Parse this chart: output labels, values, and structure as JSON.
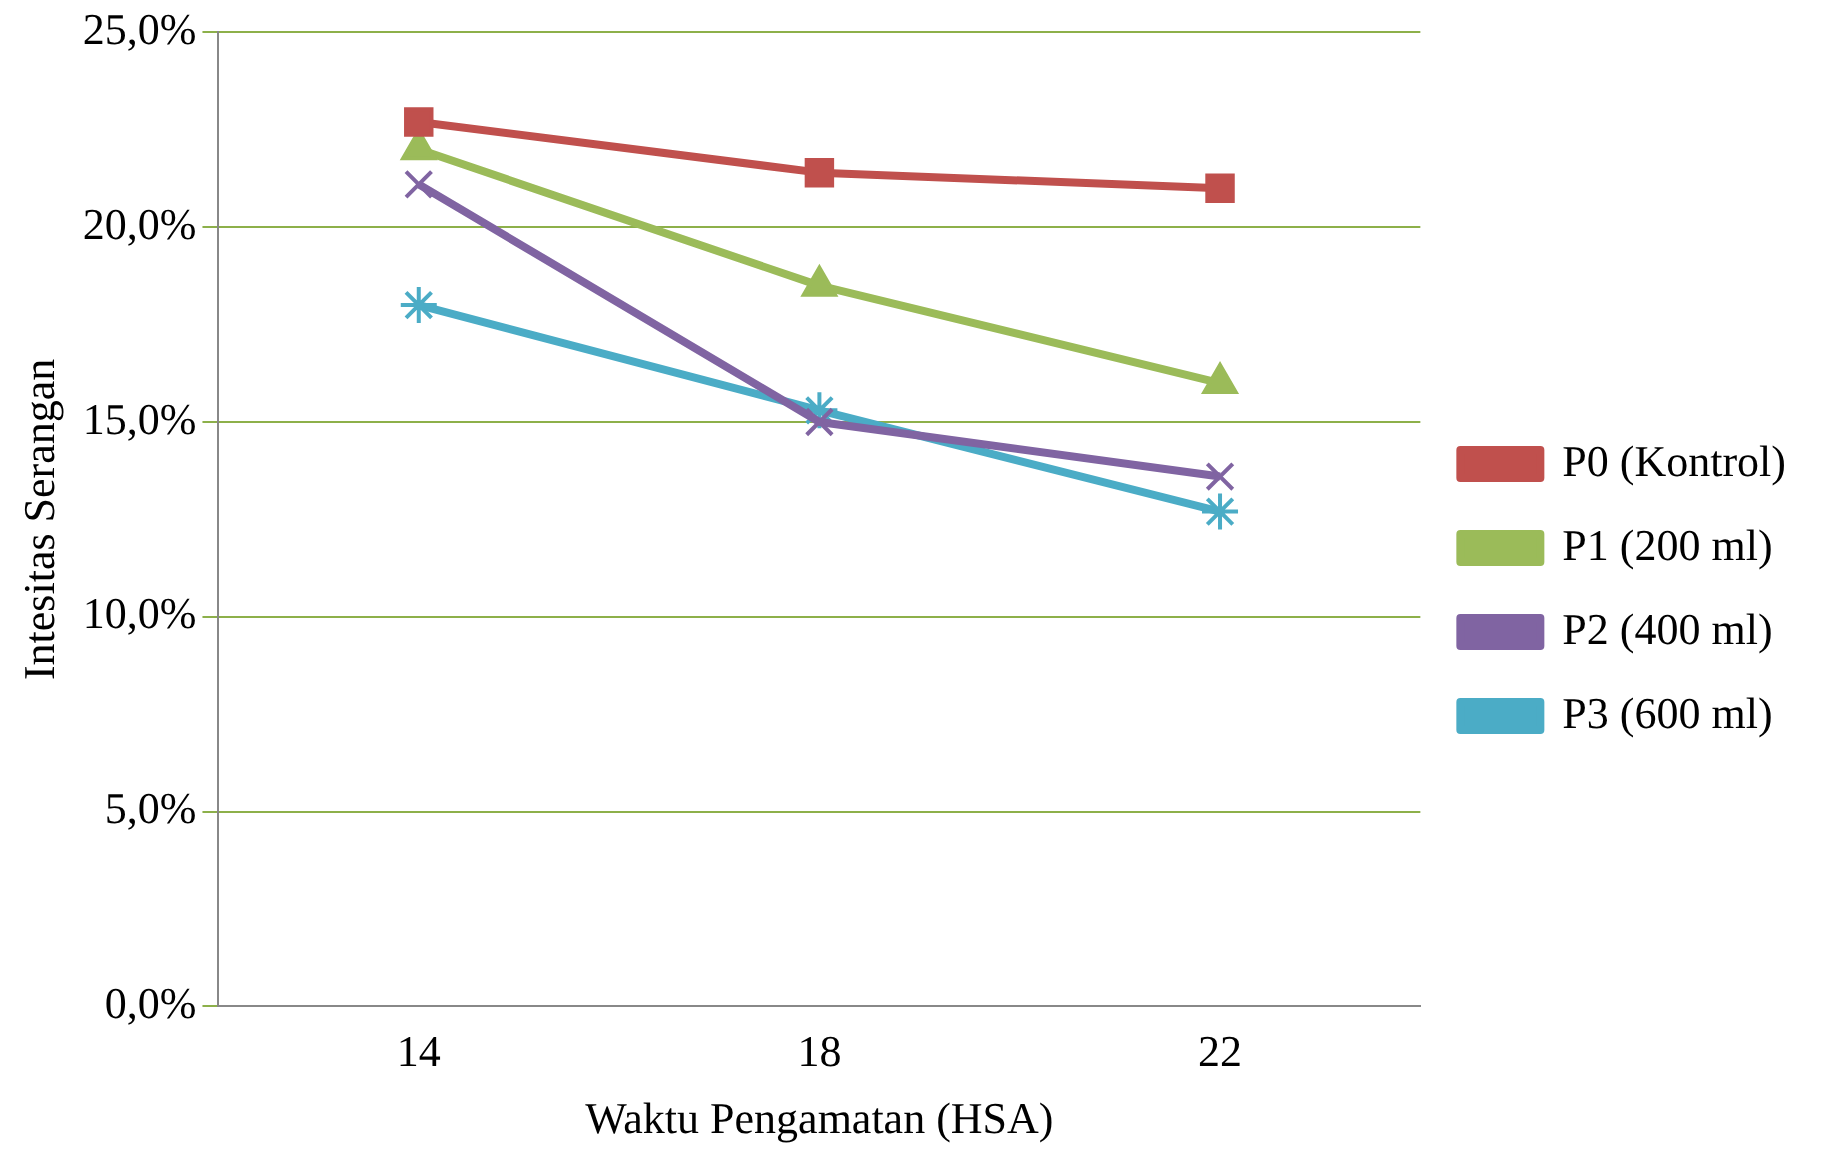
{
  "chart_data": {
    "type": "line",
    "xlabel": "Waktu Pengamatan (HSA)",
    "ylabel": "Intesitas Serangan",
    "categories": [
      "14",
      "18",
      "22"
    ],
    "series": [
      {
        "name": "P0 (Kontrol)",
        "color": "#c0504d",
        "marker": "square",
        "values": [
          22.7,
          21.4,
          21.0
        ]
      },
      {
        "name": "P1 (200 ml)",
        "color": "#9bbb59",
        "marker": "triangle",
        "values": [
          22.0,
          18.5,
          16.0
        ]
      },
      {
        "name": "P2 (400 ml)",
        "color": "#8064a2",
        "marker": "cross",
        "values": [
          21.1,
          15.0,
          13.6
        ]
      },
      {
        "name": "P3 (600 ml)",
        "color": "#4bacc6",
        "marker": "cross",
        "values": [
          18.0,
          15.3,
          12.7
        ]
      }
    ],
    "ylim": [
      0,
      25
    ],
    "yticks": [
      {
        "value": 0,
        "label": "0,0%"
      },
      {
        "value": 5,
        "label": "5,0%"
      },
      {
        "value": 10,
        "label": "10,0%"
      },
      {
        "value": 15,
        "label": "15,0%"
      },
      {
        "value": 20,
        "label": "20,0%"
      },
      {
        "value": 25,
        "label": "25,0%"
      }
    ],
    "grid": "y",
    "legend": "right"
  }
}
